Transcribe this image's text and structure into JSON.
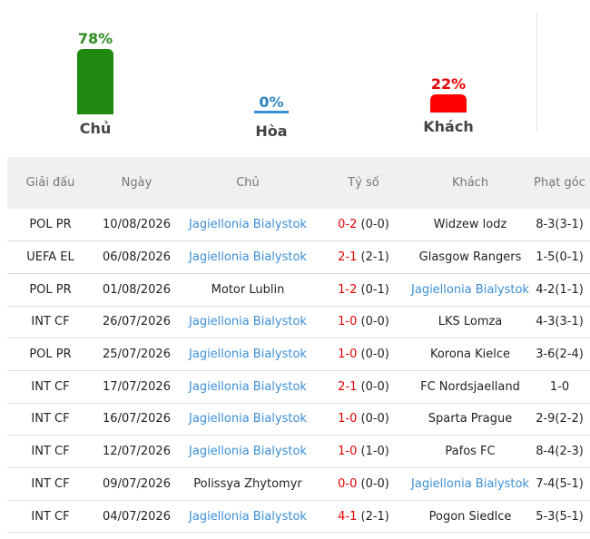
{
  "summary": {
    "home": {
      "percent": "78%",
      "label": "Chủ",
      "value": 0.78,
      "color": "#1f8a0f"
    },
    "draw": {
      "percent": "0%",
      "label": "Hòa",
      "value": 0.0,
      "color": "#3b8fd6"
    },
    "away": {
      "percent": "22%",
      "label": "Khách",
      "value": 0.22,
      "color": "#ff0000"
    }
  },
  "table": {
    "headers": {
      "competition": "Giải đấu",
      "date": "Ngày",
      "home": "Chủ",
      "score": "Tỷ số",
      "away": "Khách",
      "corners": "Phạt góc"
    },
    "rows": [
      {
        "competition": "POL PR",
        "date": "10/08/2026",
        "home": "Jagiellonia Bialystok",
        "score_ft": "0-2",
        "score_ht": " (0-0)",
        "away": "Widzew lodz",
        "corners": "8-3(3-1)",
        "highlight": "home"
      },
      {
        "competition": "UEFA EL",
        "date": "06/08/2026",
        "home": "Jagiellonia Bialystok",
        "score_ft": "2-1",
        "score_ht": " (2-1)",
        "away": "Glasgow Rangers",
        "corners": "1-5(0-1)",
        "highlight": "home"
      },
      {
        "competition": "POL PR",
        "date": "01/08/2026",
        "home": "Motor Lublin",
        "score_ft": "1-2",
        "score_ht": " (0-1)",
        "away": "Jagiellonia Bialystok",
        "corners": "4-2(1-1)",
        "highlight": "away"
      },
      {
        "competition": "INT CF",
        "date": "26/07/2026",
        "home": "Jagiellonia Bialystok",
        "score_ft": "1-0",
        "score_ht": " (0-0)",
        "away": "LKS Lomza",
        "corners": "4-3(3-1)",
        "highlight": "home"
      },
      {
        "competition": "POL PR",
        "date": "25/07/2026",
        "home": "Jagiellonia Bialystok",
        "score_ft": "1-0",
        "score_ht": " (0-0)",
        "away": "Korona Kielce",
        "corners": "3-6(2-4)",
        "highlight": "home"
      },
      {
        "competition": "INT CF",
        "date": "17/07/2026",
        "home": "Jagiellonia Bialystok",
        "score_ft": "2-1",
        "score_ht": " (0-0)",
        "away": "FC Nordsjaelland",
        "corners": "1-0",
        "highlight": "home"
      },
      {
        "competition": "INT CF",
        "date": "16/07/2026",
        "home": "Jagiellonia Bialystok",
        "score_ft": "1-0",
        "score_ht": " (0-0)",
        "away": "Sparta Prague",
        "corners": "2-9(2-2)",
        "highlight": "home"
      },
      {
        "competition": "INT CF",
        "date": "12/07/2026",
        "home": "Jagiellonia Bialystok",
        "score_ft": "1-0",
        "score_ht": " (1-0)",
        "away": "Pafos FC",
        "corners": "8-4(2-3)",
        "highlight": "home"
      },
      {
        "competition": "INT CF",
        "date": "09/07/2026",
        "home": "Polissya Zhytomyr",
        "score_ft": "0-0",
        "score_ht": " (0-0)",
        "away": "Jagiellonia Bialystok",
        "corners": "7-4(5-1)",
        "highlight": "away"
      },
      {
        "competition": "INT CF",
        "date": "04/07/2026",
        "home": "Jagiellonia Bialystok",
        "score_ft": "4-1",
        "score_ht": " (2-1)",
        "away": "Pogon Siedlce",
        "corners": "5-3(5-1)",
        "highlight": "home"
      }
    ]
  }
}
